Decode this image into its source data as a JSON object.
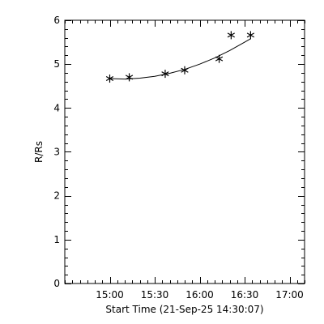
{
  "chart_data": {
    "type": "scatter",
    "title": "",
    "xlabel": "Start Time (21-Sep-25 14:30:07)",
    "ylabel": "R/Rs",
    "x_unit": "minutes after 14:30:07",
    "xlim": [
      0,
      160
    ],
    "ylim": [
      0,
      6
    ],
    "x_ticks": [
      {
        "value": 30,
        "label": "15:00"
      },
      {
        "value": 60,
        "label": "15:30"
      },
      {
        "value": 90,
        "label": "16:00"
      },
      {
        "value": 120,
        "label": "16:30"
      },
      {
        "value": 150,
        "label": "17:00"
      }
    ],
    "y_ticks": [
      0,
      1,
      2,
      3,
      4,
      5,
      6
    ],
    "y_minor_per_major": 5,
    "x_minor_step": 5,
    "series": [
      {
        "marker": "asterisk",
        "x": [
          30,
          43,
          67,
          80,
          103,
          111,
          124
        ],
        "y": [
          4.67,
          4.7,
          4.78,
          4.86,
          5.12,
          5.66,
          5.66
        ]
      }
    ],
    "fit": {
      "style": "line",
      "x": [
        30,
        40,
        50,
        60,
        70,
        80,
        90,
        100,
        110,
        120,
        124
      ],
      "y": [
        4.67,
        4.66,
        4.68,
        4.72,
        4.79,
        4.88,
        5.0,
        5.14,
        5.31,
        5.5,
        5.58
      ]
    },
    "grid": false,
    "legend": "none"
  }
}
